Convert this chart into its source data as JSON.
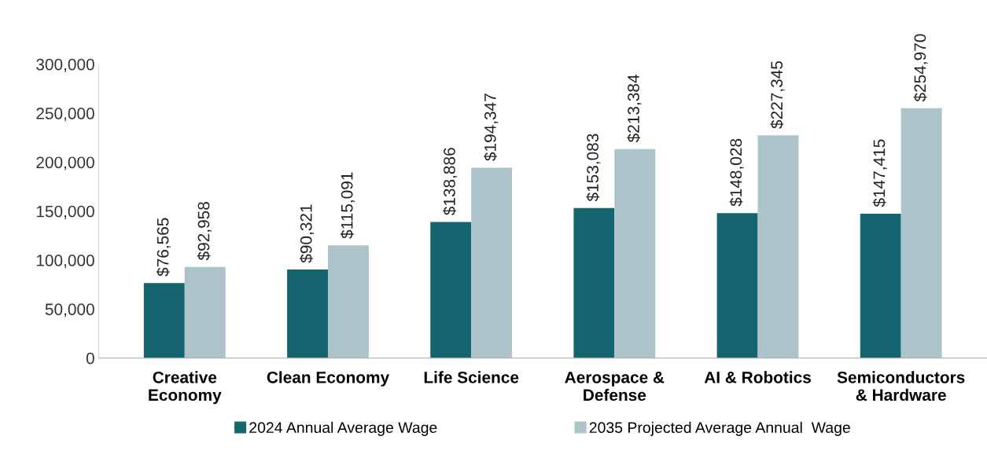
{
  "chart_data": {
    "type": "bar",
    "categories": [
      "Creative\nEconomy",
      "Clean Economy",
      "Life Science",
      "Aerospace &\nDefense",
      "AI & Robotics",
      "Semiconductors\n& Hardware"
    ],
    "series": [
      {
        "name": "2024 Annual Average Wage",
        "color": "#156570",
        "values": [
          76565,
          90321,
          138886,
          153083,
          148028,
          147415
        ],
        "value_labels": [
          "$76,565",
          "$90,321",
          "$138,886",
          "$153,083",
          "$148,028",
          "$147,415"
        ]
      },
      {
        "name": "2035 Projected Average Annual  Wage",
        "color": "#adc3ca",
        "values": [
          92958,
          115091,
          194347,
          213384,
          227345,
          254970
        ],
        "value_labels": [
          "$92,958",
          "$115,091",
          "$194,347",
          "$213,384",
          "$227,345",
          "$254,970"
        ]
      }
    ],
    "ylim": [
      0,
      300000
    ],
    "yticks": [
      0,
      {
        "value": 50000,
        "label": "50,000"
      },
      {
        "value": 100000,
        "label": "100,000"
      },
      {
        "value": 150000,
        "label": "150,000"
      },
      {
        "value": 200000,
        "label": "200,000"
      },
      {
        "value": 250000,
        "label": "250,000"
      },
      {
        "value": 300000,
        "label": "300,000"
      }
    ],
    "grid": false,
    "legend": "bottom"
  }
}
